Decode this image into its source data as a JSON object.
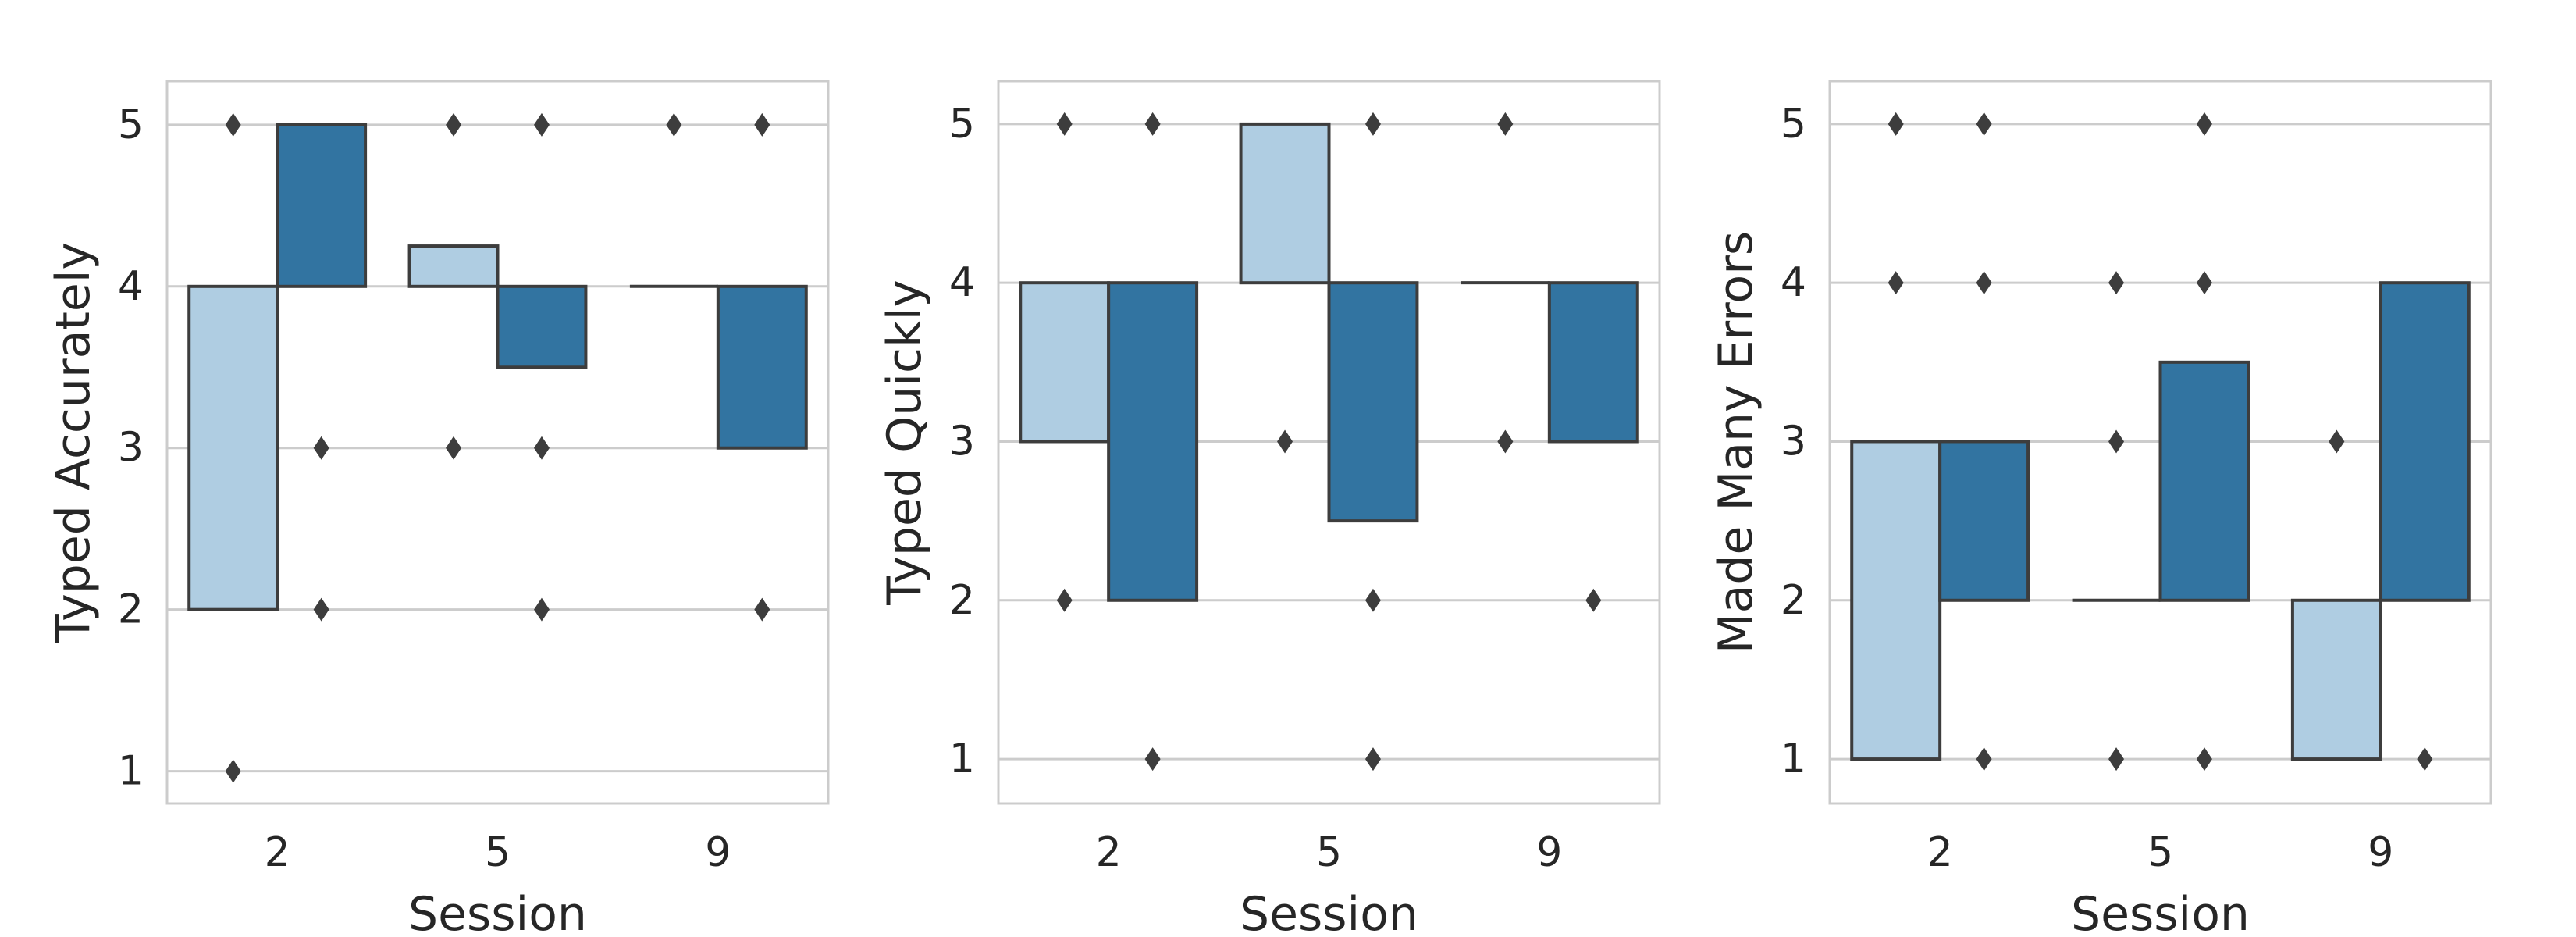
{
  "chart_data": [
    {
      "type": "box",
      "xlabel": "Session",
      "ylabel": "Typed Accurately",
      "categories": [
        "2",
        "5",
        "9"
      ],
      "ylim": [
        0.8,
        5.27
      ],
      "yticks": [
        1,
        2,
        3,
        4,
        5
      ],
      "grid": true,
      "series": [
        {
          "color": "#afcde2",
          "boxes": [
            {
              "category": "2",
              "q1": 2,
              "q3": 4,
              "outliers": [
                1,
                5
              ]
            },
            {
              "category": "5",
              "q1": 4,
              "q3": 4.25,
              "outliers": [
                3,
                5
              ]
            },
            {
              "category": "9",
              "q1": 4,
              "q3": 4,
              "outliers": [
                5
              ]
            }
          ]
        },
        {
          "color": "#3274a1",
          "boxes": [
            {
              "category": "2",
              "q1": 4,
              "q3": 5,
              "outliers": [
                2,
                3
              ]
            },
            {
              "category": "5",
              "q1": 3.5,
              "q3": 4,
              "outliers": [
                2,
                3,
                5
              ]
            },
            {
              "category": "9",
              "q1": 3,
              "q3": 4,
              "outliers": [
                2,
                5
              ]
            }
          ]
        }
      ]
    },
    {
      "type": "box",
      "xlabel": "Session",
      "ylabel": "Typed Quickly",
      "categories": [
        "2",
        "5",
        "9"
      ],
      "ylim": [
        0.72,
        5.27
      ],
      "yticks": [
        1,
        2,
        3,
        4,
        5
      ],
      "grid": true,
      "series": [
        {
          "color": "#afcde2",
          "boxes": [
            {
              "category": "2",
              "q1": 3,
              "q3": 4,
              "outliers": [
                2,
                5
              ]
            },
            {
              "category": "5",
              "q1": 4,
              "q3": 5,
              "outliers": [
                3
              ]
            },
            {
              "category": "9",
              "q1": 4,
              "q3": 4,
              "outliers": [
                3,
                5
              ]
            }
          ]
        },
        {
          "color": "#3274a1",
          "boxes": [
            {
              "category": "2",
              "q1": 2,
              "q3": 4,
              "outliers": [
                1,
                5
              ]
            },
            {
              "category": "5",
              "q1": 2.5,
              "q3": 4,
              "outliers": [
                1,
                2,
                5
              ]
            },
            {
              "category": "9",
              "q1": 3,
              "q3": 4,
              "outliers": [
                2
              ]
            }
          ]
        }
      ]
    },
    {
      "type": "box",
      "xlabel": "Session",
      "ylabel": "Made Many Errors",
      "categories": [
        "2",
        "5",
        "9"
      ],
      "ylim": [
        0.72,
        5.27
      ],
      "yticks": [
        1,
        2,
        3,
        4,
        5
      ],
      "grid": true,
      "series": [
        {
          "color": "#afcde2",
          "boxes": [
            {
              "category": "2",
              "q1": 1,
              "q3": 3,
              "outliers": [
                4,
                5
              ]
            },
            {
              "category": "5",
              "q1": 2,
              "q3": 2,
              "outliers": [
                1,
                3,
                4
              ]
            },
            {
              "category": "9",
              "q1": 1,
              "q3": 2,
              "outliers": [
                3
              ]
            }
          ]
        },
        {
          "color": "#3274a1",
          "boxes": [
            {
              "category": "2",
              "q1": 2,
              "q3": 3,
              "outliers": [
                1,
                4,
                5
              ]
            },
            {
              "category": "5",
              "q1": 2,
              "q3": 3.5,
              "outliers": [
                1,
                4,
                5
              ]
            },
            {
              "category": "9",
              "q1": 2,
              "q3": 4,
              "outliers": [
                1
              ]
            }
          ]
        }
      ]
    }
  ]
}
